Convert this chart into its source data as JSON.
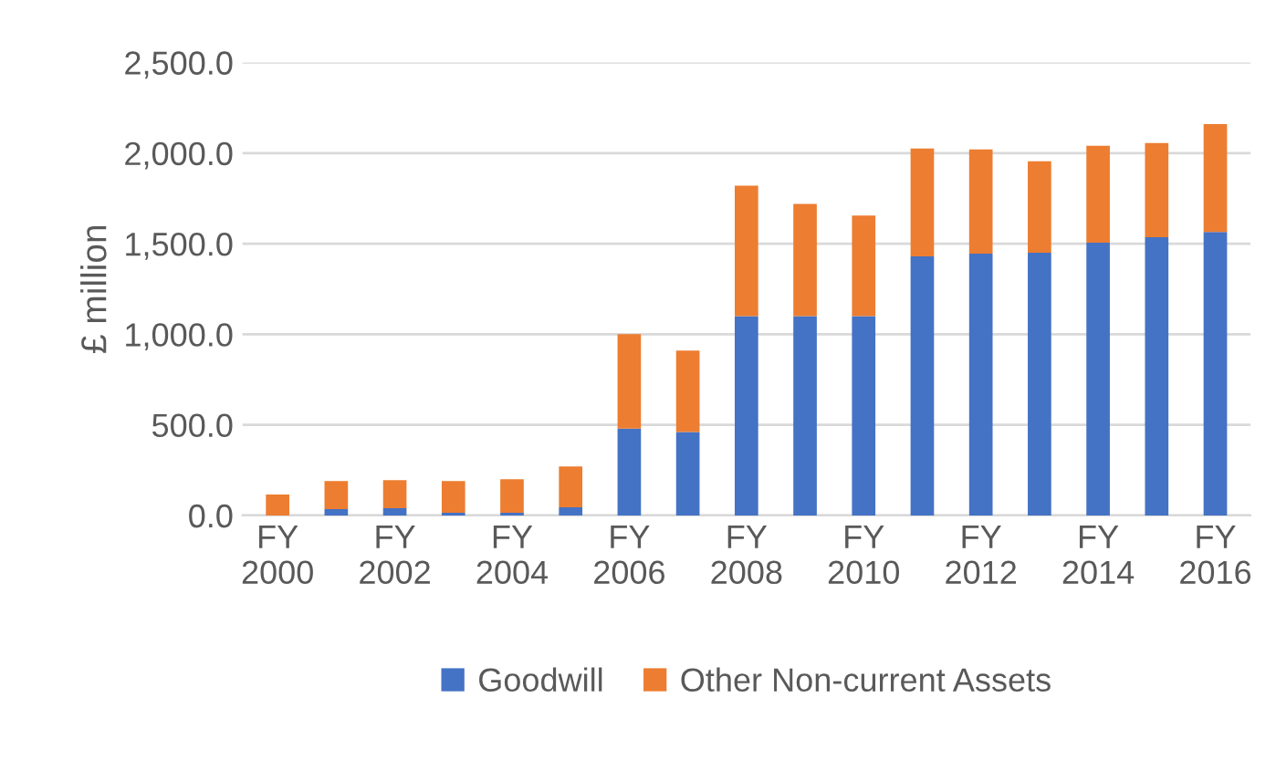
{
  "chart_data": {
    "type": "bar",
    "stacked": true,
    "ylabel": "£ million",
    "categories": [
      "FY\n2000",
      null,
      "FY\n2002",
      null,
      "FY\n2004",
      null,
      "FY\n2006",
      null,
      "FY\n2008",
      null,
      "FY\n2010",
      null,
      "FY\n2012",
      null,
      "FY\n2014",
      null,
      "FY\n2016"
    ],
    "series": [
      {
        "name": "Goodwill",
        "color": "#4472c4",
        "values": [
          0,
          35,
          40,
          15,
          15,
          45,
          480,
          460,
          1100,
          1100,
          1100,
          1430,
          1445,
          1450,
          1505,
          1535,
          1565
        ]
      },
      {
        "name": "Other Non-current Assets",
        "color": "#ed7d31",
        "values": [
          115,
          155,
          155,
          175,
          185,
          225,
          520,
          450,
          720,
          620,
          555,
          595,
          575,
          505,
          535,
          520,
          595
        ]
      }
    ],
    "ylim": [
      0,
      2500
    ],
    "yticks": [
      {
        "value": 0,
        "label": "0.0"
      },
      {
        "value": 500,
        "label": "500.0"
      },
      {
        "value": 1000,
        "label": "1,000.0"
      },
      {
        "value": 1500,
        "label": "1,500.0"
      },
      {
        "value": 2000,
        "label": "2,000.0"
      },
      {
        "value": 2500,
        "label": "2,500.0"
      }
    ],
    "grid": "y",
    "legend": "bottom"
  }
}
